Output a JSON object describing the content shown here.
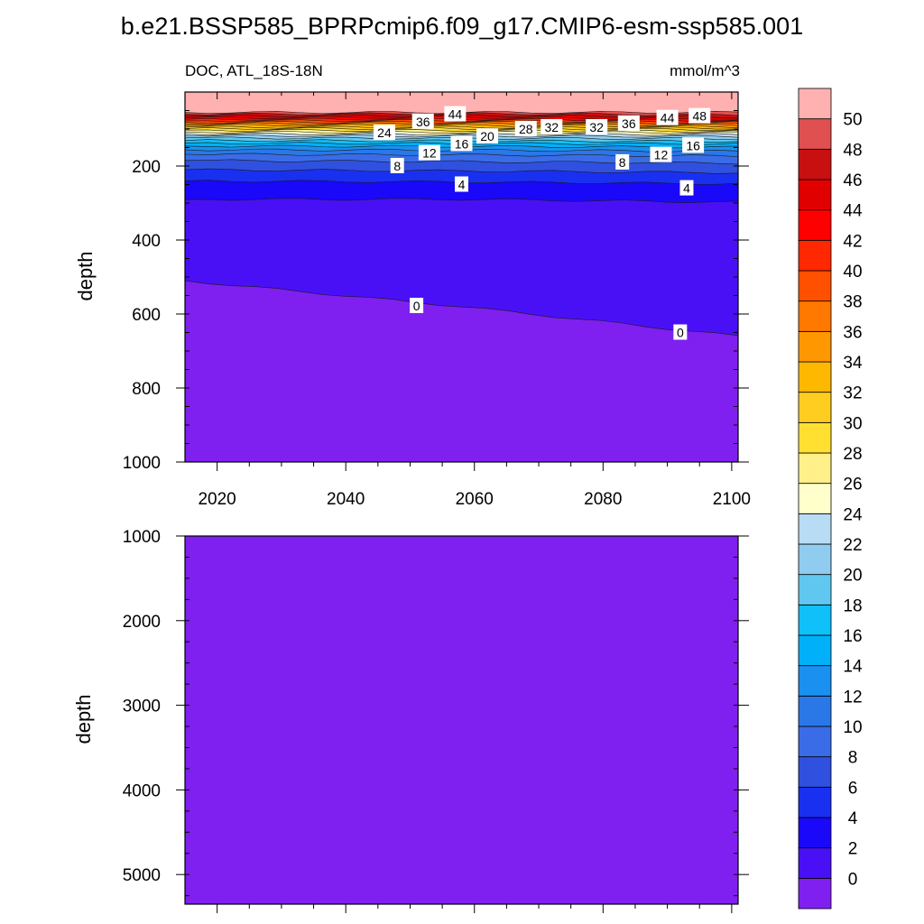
{
  "chart_data": {
    "type": "contour",
    "title": "b.e21.BSSP585_BPRPcmip6.f09_g17.CMIP6-esm-ssp585.001",
    "left_string": "DOC, ATL_18S-18N",
    "right_string": "mmol/m^3",
    "x": {
      "label": "",
      "range": [
        2015,
        2101
      ],
      "ticks": [
        2020,
        2040,
        2060,
        2080,
        2100
      ],
      "tick_labels": [
        "2020",
        "2040",
        "2060",
        "2080",
        "2100"
      ]
    },
    "panels": [
      {
        "name": "upper",
        "ylabel": "depth",
        "y_range": [
          0,
          1000
        ],
        "y_ticks": [
          200,
          400,
          600,
          800,
          1000
        ],
        "y_tick_labels": [
          "200",
          "400",
          "600",
          "800",
          "1000"
        ],
        "contour_levels_depth": [
          {
            "level": 50,
            "depth": [
              55,
              55,
              55
            ]
          },
          {
            "level": 48,
            "depth": [
              60,
              58,
              62
            ]
          },
          {
            "level": 46,
            "depth": [
              65,
              63,
              68
            ]
          },
          {
            "level": 44,
            "depth": [
              70,
              68,
              74
            ]
          },
          {
            "level": 42,
            "depth": [
              74,
              73,
              78
            ]
          },
          {
            "level": 40,
            "depth": [
              78,
              77,
              82
            ]
          },
          {
            "level": 38,
            "depth": [
              82,
              81,
              86
            ]
          },
          {
            "level": 36,
            "depth": [
              86,
              85,
              90
            ]
          },
          {
            "level": 34,
            "depth": [
              90,
              90,
              94
            ]
          },
          {
            "level": 32,
            "depth": [
              95,
              95,
              98
            ]
          },
          {
            "level": 30,
            "depth": [
              99,
              99,
              102
            ]
          },
          {
            "level": 28,
            "depth": [
              103,
              104,
              106
            ]
          },
          {
            "level": 26,
            "depth": [
              108,
              109,
              110
            ]
          },
          {
            "level": 24,
            "depth": [
              113,
              114,
              115
            ]
          },
          {
            "level": 22,
            "depth": [
              118,
              119,
              120
            ]
          },
          {
            "level": 20,
            "depth": [
              124,
              125,
              126
            ]
          },
          {
            "level": 18,
            "depth": [
              131,
              132,
              133
            ]
          },
          {
            "level": 16,
            "depth": [
              138,
              139,
              140
            ]
          },
          {
            "level": 14,
            "depth": [
              146,
              147,
              149
            ]
          },
          {
            "level": 12,
            "depth": [
              156,
              157,
              160
            ]
          },
          {
            "level": 10,
            "depth": [
              168,
              170,
              173
            ]
          },
          {
            "level": 8,
            "depth": [
              185,
              188,
              192
            ]
          },
          {
            "level": 6,
            "depth": [
              210,
              213,
              218
            ]
          },
          {
            "level": 4,
            "depth": [
              240,
              243,
              248
            ]
          },
          {
            "level": 2,
            "depth": [
              290,
              290,
              298
            ]
          },
          {
            "level": 0,
            "depth": [
              510,
              580,
              660
            ]
          }
        ],
        "contour_labels": [
          {
            "text": "44",
            "year": 2057,
            "depth": 60
          },
          {
            "text": "36",
            "year": 2052,
            "depth": 80
          },
          {
            "text": "24",
            "year": 2046,
            "depth": 110
          },
          {
            "text": "12",
            "year": 2053,
            "depth": 165
          },
          {
            "text": "16",
            "year": 2058,
            "depth": 140
          },
          {
            "text": "8",
            "year": 2048,
            "depth": 200
          },
          {
            "text": "20",
            "year": 2062,
            "depth": 120
          },
          {
            "text": "28",
            "year": 2068,
            "depth": 100
          },
          {
            "text": "32",
            "year": 2072,
            "depth": 95
          },
          {
            "text": "32",
            "year": 2079,
            "depth": 95
          },
          {
            "text": "36",
            "year": 2084,
            "depth": 85
          },
          {
            "text": "44",
            "year": 2090,
            "depth": 70
          },
          {
            "text": "48",
            "year": 2095,
            "depth": 65
          },
          {
            "text": "16",
            "year": 2094,
            "depth": 145
          },
          {
            "text": "12",
            "year": 2089,
            "depth": 170
          },
          {
            "text": "8",
            "year": 2083,
            "depth": 190
          },
          {
            "text": "4",
            "year": 2058,
            "depth": 250
          },
          {
            "text": "4",
            "year": 2093,
            "depth": 260
          },
          {
            "text": "0",
            "year": 2051,
            "depth": 578
          },
          {
            "text": "0",
            "year": 2092,
            "depth": 650
          }
        ]
      },
      {
        "name": "lower",
        "ylabel": "depth",
        "y_range": [
          1000,
          5350
        ],
        "y_ticks": [
          1000,
          2000,
          3000,
          4000,
          5000
        ],
        "y_tick_labels": [
          "1000",
          "2000",
          "3000",
          "4000",
          "5000"
        ],
        "contour_levels_depth": [],
        "contour_labels": []
      }
    ],
    "colorbar": {
      "labels": [
        "0",
        "2",
        "4",
        "6",
        "8",
        "10",
        "12",
        "14",
        "16",
        "18",
        "20",
        "22",
        "24",
        "26",
        "28",
        "30",
        "32",
        "34",
        "36",
        "38",
        "40",
        "42",
        "44",
        "46",
        "48",
        "50"
      ],
      "colors": [
        "#7f20f0",
        "#4a10f5",
        "#1a08f8",
        "#1a30f0",
        "#3050e0",
        "#3a6ce8",
        "#2a78e8",
        "#1a90f0",
        "#00b0f8",
        "#10c0f8",
        "#60c8f0",
        "#90ccf0",
        "#b8dcf4",
        "#ffffcc",
        "#fff08a",
        "#ffe030",
        "#ffcc20",
        "#ffb800",
        "#ff9800",
        "#ff7800",
        "#ff5000",
        "#ff2800",
        "#ff0000",
        "#e00000",
        "#c81010",
        "#e05050",
        "#ffb0b0"
      ]
    }
  }
}
